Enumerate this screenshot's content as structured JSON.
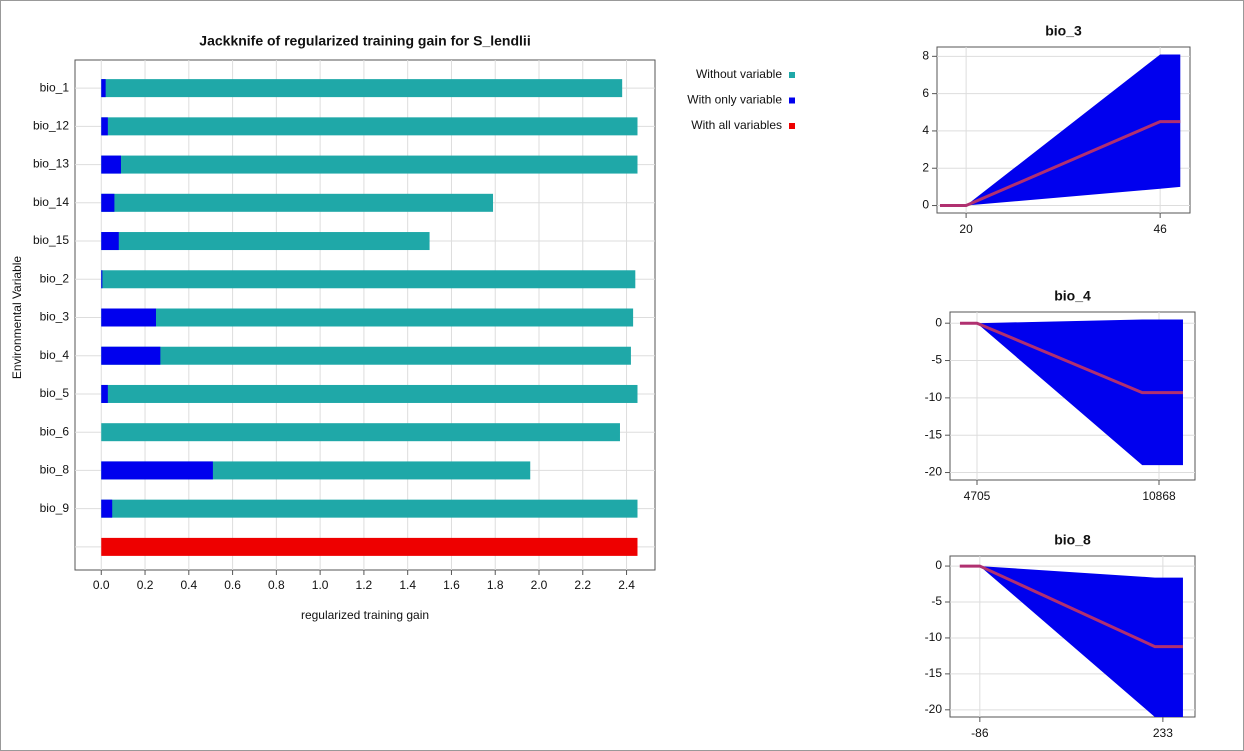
{
  "chart_data": [
    {
      "type": "hbar",
      "title": "Jackknife of regularized training gain for S_lendlii",
      "xlabel": "regularized training gain",
      "ylabel": "Environmental Variable",
      "categories": [
        "bio_1",
        "bio_12",
        "bio_13",
        "bio_14",
        "bio_15",
        "bio_2",
        "bio_3",
        "bio_4",
        "bio_5",
        "bio_6",
        "bio_8",
        "bio_9",
        null
      ],
      "series": [
        {
          "name": "Without variable",
          "color": "#1fa8a8",
          "values": [
            2.38,
            2.45,
            2.45,
            1.79,
            1.5,
            2.44,
            2.43,
            2.42,
            2.45,
            2.37,
            1.96,
            2.45,
            null
          ]
        },
        {
          "name": "With only variable",
          "color": "#0000ee",
          "values": [
            0.02,
            0.03,
            0.09,
            0.06,
            0.08,
            0.005,
            0.25,
            0.27,
            0.03,
            0,
            0.51,
            0.05,
            null
          ]
        },
        {
          "name": "With all variables",
          "color": "#ee0000",
          "values": [
            null,
            null,
            null,
            null,
            null,
            null,
            null,
            null,
            null,
            null,
            null,
            null,
            2.45
          ]
        }
      ],
      "xlim": [
        -0.12,
        2.53
      ],
      "xticks": [
        {
          "value": 0,
          "label": "0.0"
        },
        0.2,
        0.4,
        0.6,
        0.8,
        {
          "value": 1,
          "label": "1.0"
        },
        1.2,
        1.4,
        1.6,
        1.8,
        {
          "value": 2,
          "label": "2.0"
        },
        2.2,
        2.4
      ],
      "grid": true,
      "legend": "right"
    },
    {
      "type": "response",
      "title": "bio_3",
      "x": [
        16.5,
        20,
        46,
        48.7
      ],
      "series": [
        {
          "color": "#b03070",
          "values": [
            0,
            0,
            4.5,
            4.5
          ]
        }
      ],
      "band": {
        "color": "#0000ee",
        "upper": [
          0,
          0,
          8.1,
          8.1
        ],
        "lower": [
          0,
          0,
          0.9,
          1.0
        ]
      },
      "xlim": [
        16.1,
        50.0
      ],
      "ylim": [
        -0.4,
        8.5
      ],
      "xticks": [
        20,
        46
      ],
      "yticks": [
        0,
        2,
        4,
        6,
        8
      ],
      "grid": true
    },
    {
      "type": "response",
      "title": "bio_4",
      "x": [
        4130,
        4705,
        10300,
        11680
      ],
      "series": [
        {
          "color": "#b03070",
          "values": [
            0,
            0,
            -9.3,
            -9.3
          ]
        }
      ],
      "band": {
        "color": "#0000ee",
        "upper": [
          0,
          0,
          0.5,
          0.5
        ],
        "lower": [
          0,
          0,
          -19,
          -19
        ]
      },
      "xlim": [
        3791,
        12087
      ],
      "ylim": [
        -21,
        1.5
      ],
      "xticks": [
        4705,
        10868
      ],
      "yticks": [
        0,
        -5,
        -10,
        -15,
        -20
      ],
      "grid": true
    },
    {
      "type": "response",
      "title": "bio_8",
      "x": [
        -121,
        -86,
        219,
        268
      ],
      "series": [
        {
          "color": "#b03070",
          "values": [
            0,
            0,
            -11.2,
            -11.2
          ]
        }
      ],
      "band": {
        "color": "#0000ee",
        "upper": [
          0,
          0,
          -1.6,
          -1.6
        ],
        "lower": [
          0,
          0,
          -21,
          -21
        ]
      },
      "xlim": [
        -138,
        289
      ],
      "ylim": [
        -21,
        1.4
      ],
      "xticks": [
        -86,
        233
      ],
      "yticks": [
        0,
        -5,
        -10,
        -15,
        -20
      ],
      "grid": true
    }
  ]
}
